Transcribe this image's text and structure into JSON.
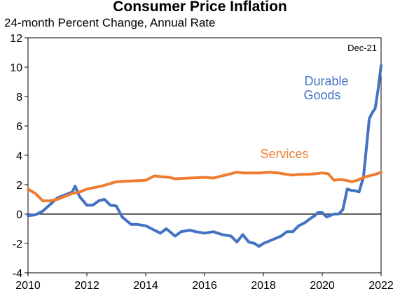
{
  "chart_data": {
    "type": "line",
    "title": "Consumer Price Inflation",
    "subtitle": "24-month Percent Change, Annual Rate",
    "xlabel": "",
    "ylabel": "",
    "xlim": [
      2010,
      2022
    ],
    "ylim": [
      -4,
      12
    ],
    "x_ticks": [
      "2010",
      "2012",
      "2014",
      "2016",
      "2018",
      "2020",
      "2022"
    ],
    "y_ticks": [
      "-4",
      "-2",
      "0",
      "2",
      "4",
      "6",
      "8",
      "10",
      "12"
    ],
    "grid": false,
    "zero_line": true,
    "legend": "direct labels",
    "annotation": "Dec-21",
    "series": [
      {
        "name": "Durable Goods",
        "color": "#4472C4",
        "points": [
          [
            2010.0,
            -0.1
          ],
          [
            2010.25,
            -0.05
          ],
          [
            2010.5,
            0.2
          ],
          [
            2010.75,
            0.65
          ],
          [
            2011.0,
            1.1
          ],
          [
            2011.25,
            1.3
          ],
          [
            2011.5,
            1.5
          ],
          [
            2011.6,
            1.9
          ],
          [
            2011.75,
            1.2
          ],
          [
            2012.0,
            0.6
          ],
          [
            2012.2,
            0.6
          ],
          [
            2012.4,
            0.9
          ],
          [
            2012.6,
            1.0
          ],
          [
            2012.8,
            0.6
          ],
          [
            2013.0,
            0.55
          ],
          [
            2013.2,
            -0.2
          ],
          [
            2013.5,
            -0.7
          ],
          [
            2013.7,
            -0.7
          ],
          [
            2014.0,
            -0.8
          ],
          [
            2014.2,
            -1.0
          ],
          [
            2014.5,
            -1.3
          ],
          [
            2014.7,
            -1.0
          ],
          [
            2015.0,
            -1.5
          ],
          [
            2015.2,
            -1.2
          ],
          [
            2015.5,
            -1.1
          ],
          [
            2015.7,
            -1.2
          ],
          [
            2016.0,
            -1.3
          ],
          [
            2016.3,
            -1.2
          ],
          [
            2016.6,
            -1.4
          ],
          [
            2016.9,
            -1.5
          ],
          [
            2017.1,
            -1.9
          ],
          [
            2017.3,
            -1.4
          ],
          [
            2017.5,
            -1.9
          ],
          [
            2017.7,
            -2.0
          ],
          [
            2017.85,
            -2.2
          ],
          [
            2018.0,
            -2.0
          ],
          [
            2018.3,
            -1.75
          ],
          [
            2018.6,
            -1.5
          ],
          [
            2018.8,
            -1.2
          ],
          [
            2019.0,
            -1.2
          ],
          [
            2019.2,
            -0.8
          ],
          [
            2019.4,
            -0.6
          ],
          [
            2019.6,
            -0.3
          ],
          [
            2019.75,
            -0.1
          ],
          [
            2019.85,
            0.1
          ],
          [
            2020.0,
            0.1
          ],
          [
            2020.15,
            -0.2
          ],
          [
            2020.4,
            0.0
          ],
          [
            2020.55,
            0.0
          ],
          [
            2020.7,
            0.3
          ],
          [
            2020.85,
            1.7
          ],
          [
            2021.0,
            1.6
          ],
          [
            2021.1,
            1.6
          ],
          [
            2021.25,
            1.5
          ],
          [
            2021.4,
            2.5
          ],
          [
            2021.5,
            4.5
          ],
          [
            2021.6,
            6.5
          ],
          [
            2021.7,
            6.9
          ],
          [
            2021.8,
            7.2
          ],
          [
            2021.9,
            8.5
          ],
          [
            2022.0,
            10.1
          ]
        ]
      },
      {
        "name": "Services",
        "color": "#ED7D31",
        "points": [
          [
            2010.0,
            1.7
          ],
          [
            2010.25,
            1.4
          ],
          [
            2010.5,
            0.9
          ],
          [
            2010.75,
            0.9
          ],
          [
            2011.0,
            1.0
          ],
          [
            2011.25,
            1.2
          ],
          [
            2011.5,
            1.4
          ],
          [
            2011.75,
            1.5
          ],
          [
            2012.0,
            1.7
          ],
          [
            2012.5,
            1.9
          ],
          [
            2013.0,
            2.2
          ],
          [
            2013.5,
            2.25
          ],
          [
            2014.0,
            2.3
          ],
          [
            2014.3,
            2.6
          ],
          [
            2014.5,
            2.55
          ],
          [
            2014.8,
            2.5
          ],
          [
            2015.0,
            2.4
          ],
          [
            2015.5,
            2.45
          ],
          [
            2016.0,
            2.5
          ],
          [
            2016.3,
            2.45
          ],
          [
            2016.6,
            2.6
          ],
          [
            2016.9,
            2.75
          ],
          [
            2017.1,
            2.85
          ],
          [
            2017.3,
            2.8
          ],
          [
            2017.6,
            2.8
          ],
          [
            2017.9,
            2.8
          ],
          [
            2018.2,
            2.85
          ],
          [
            2018.5,
            2.8
          ],
          [
            2018.8,
            2.7
          ],
          [
            2019.0,
            2.65
          ],
          [
            2019.2,
            2.7
          ],
          [
            2019.5,
            2.7
          ],
          [
            2019.8,
            2.75
          ],
          [
            2020.0,
            2.8
          ],
          [
            2020.2,
            2.75
          ],
          [
            2020.4,
            2.3
          ],
          [
            2020.6,
            2.35
          ],
          [
            2020.8,
            2.3
          ],
          [
            2021.0,
            2.2
          ],
          [
            2021.2,
            2.3
          ],
          [
            2021.4,
            2.5
          ],
          [
            2021.6,
            2.6
          ],
          [
            2021.8,
            2.7
          ],
          [
            2022.0,
            2.85
          ]
        ]
      }
    ]
  }
}
